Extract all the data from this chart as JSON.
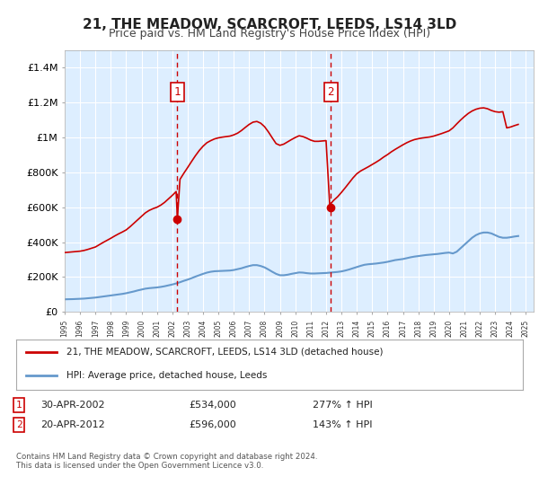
{
  "title": "21, THE MEADOW, SCARCROFT, LEEDS, LS14 3LD",
  "subtitle": "Price paid vs. HM Land Registry's House Price Index (HPI)",
  "background_color": "#ffffff",
  "plot_bg_color": "#ddeeff",
  "grid_color": "#ffffff",
  "ylim": [
    0,
    1500000
  ],
  "yticks": [
    0,
    200000,
    400000,
    600000,
    800000,
    1000000,
    1200000,
    1400000
  ],
  "ytick_labels": [
    "£0",
    "£200K",
    "£400K",
    "£600K",
    "£800K",
    "£1M",
    "£1.2M",
    "£1.4M"
  ],
  "xlim_start": 1995.0,
  "xlim_end": 2025.5,
  "sale1_x": 2002.33,
  "sale1_y": 534000,
  "sale1_label": "1",
  "sale1_date": "30-APR-2002",
  "sale1_price": "£534,000",
  "sale1_hpi": "277% ↑ HPI",
  "sale2_x": 2012.3,
  "sale2_y": 596000,
  "sale2_label": "2",
  "sale2_date": "20-APR-2012",
  "sale2_price": "£596,000",
  "sale2_hpi": "143% ↑ HPI",
  "red_line_color": "#cc0000",
  "blue_line_color": "#6699cc",
  "dashed_line_color": "#cc0000",
  "sale_marker_color": "#cc0000",
  "legend_label_red": "21, THE MEADOW, SCARCROFT, LEEDS, LS14 3LD (detached house)",
  "legend_label_blue": "HPI: Average price, detached house, Leeds",
  "footer": "Contains HM Land Registry data © Crown copyright and database right 2024.\nThis data is licensed under the Open Government Licence v3.0.",
  "hpi_data_x": [
    1995.0,
    1995.25,
    1995.5,
    1995.75,
    1996.0,
    1996.25,
    1996.5,
    1996.75,
    1997.0,
    1997.25,
    1997.5,
    1997.75,
    1998.0,
    1998.25,
    1998.5,
    1998.75,
    1999.0,
    1999.25,
    1999.5,
    1999.75,
    2000.0,
    2000.25,
    2000.5,
    2000.75,
    2001.0,
    2001.25,
    2001.5,
    2001.75,
    2002.0,
    2002.25,
    2002.5,
    2002.75,
    2003.0,
    2003.25,
    2003.5,
    2003.75,
    2004.0,
    2004.25,
    2004.5,
    2004.75,
    2005.0,
    2005.25,
    2005.5,
    2005.75,
    2006.0,
    2006.25,
    2006.5,
    2006.75,
    2007.0,
    2007.25,
    2007.5,
    2007.75,
    2008.0,
    2008.25,
    2008.5,
    2008.75,
    2009.0,
    2009.25,
    2009.5,
    2009.75,
    2010.0,
    2010.25,
    2010.5,
    2010.75,
    2011.0,
    2011.25,
    2011.5,
    2011.75,
    2012.0,
    2012.25,
    2012.5,
    2012.75,
    2013.0,
    2013.25,
    2013.5,
    2013.75,
    2014.0,
    2014.25,
    2014.5,
    2014.75,
    2015.0,
    2015.25,
    2015.5,
    2015.75,
    2016.0,
    2016.25,
    2016.5,
    2016.75,
    2017.0,
    2017.25,
    2017.5,
    2017.75,
    2018.0,
    2018.25,
    2018.5,
    2018.75,
    2019.0,
    2019.25,
    2019.5,
    2019.75,
    2020.0,
    2020.25,
    2020.5,
    2020.75,
    2021.0,
    2021.25,
    2021.5,
    2021.75,
    2022.0,
    2022.25,
    2022.5,
    2022.75,
    2023.0,
    2023.25,
    2023.5,
    2023.75,
    2024.0,
    2024.25,
    2024.5
  ],
  "hpi_data_y": [
    72000,
    72500,
    73000,
    74000,
    75000,
    76000,
    78000,
    80000,
    82000,
    85000,
    88000,
    91000,
    94000,
    97000,
    100000,
    103000,
    107000,
    112000,
    117000,
    123000,
    128000,
    133000,
    136000,
    138000,
    140000,
    143000,
    147000,
    152000,
    157000,
    163000,
    170000,
    178000,
    185000,
    193000,
    202000,
    210000,
    218000,
    225000,
    230000,
    233000,
    234000,
    235000,
    236000,
    237000,
    240000,
    245000,
    250000,
    257000,
    263000,
    268000,
    268000,
    263000,
    255000,
    243000,
    230000,
    218000,
    210000,
    210000,
    213000,
    218000,
    222000,
    226000,
    225000,
    222000,
    220000,
    220000,
    221000,
    222000,
    223000,
    225000,
    227000,
    229000,
    232000,
    237000,
    243000,
    250000,
    257000,
    264000,
    270000,
    273000,
    275000,
    277000,
    280000,
    283000,
    287000,
    292000,
    297000,
    300000,
    303000,
    308000,
    313000,
    317000,
    320000,
    323000,
    326000,
    328000,
    330000,
    332000,
    335000,
    338000,
    340000,
    335000,
    345000,
    365000,
    385000,
    405000,
    425000,
    440000,
    450000,
    455000,
    455000,
    450000,
    440000,
    430000,
    425000,
    425000,
    428000,
    432000,
    435000
  ],
  "red_line_data_x": [
    1995.0,
    1995.25,
    1995.5,
    1995.75,
    1996.0,
    1996.25,
    1996.5,
    1996.75,
    1997.0,
    1997.25,
    1997.5,
    1997.75,
    1998.0,
    1998.25,
    1998.5,
    1998.75,
    1999.0,
    1999.25,
    1999.5,
    1999.75,
    2000.0,
    2000.25,
    2000.5,
    2000.75,
    2001.0,
    2001.25,
    2001.5,
    2001.75,
    2002.0,
    2002.25,
    2002.33,
    2002.5,
    2002.75,
    2003.0,
    2003.25,
    2003.5,
    2003.75,
    2004.0,
    2004.25,
    2004.5,
    2004.75,
    2005.0,
    2005.25,
    2005.5,
    2005.75,
    2006.0,
    2006.25,
    2006.5,
    2006.75,
    2007.0,
    2007.25,
    2007.5,
    2007.75,
    2008.0,
    2008.25,
    2008.5,
    2008.75,
    2009.0,
    2009.25,
    2009.5,
    2009.75,
    2010.0,
    2010.25,
    2010.5,
    2010.75,
    2011.0,
    2011.25,
    2011.5,
    2011.75,
    2012.0,
    2012.25,
    2012.3,
    2012.5,
    2012.75,
    2013.0,
    2013.25,
    2013.5,
    2013.75,
    2014.0,
    2014.25,
    2014.5,
    2014.75,
    2015.0,
    2015.25,
    2015.5,
    2015.75,
    2016.0,
    2016.25,
    2016.5,
    2016.75,
    2017.0,
    2017.25,
    2017.5,
    2017.75,
    2018.0,
    2018.25,
    2018.5,
    2018.75,
    2019.0,
    2019.25,
    2019.5,
    2019.75,
    2020.0,
    2020.25,
    2020.5,
    2020.75,
    2021.0,
    2021.25,
    2021.5,
    2021.75,
    2022.0,
    2022.25,
    2022.5,
    2022.75,
    2023.0,
    2023.25,
    2023.5,
    2023.75,
    2024.0,
    2024.25,
    2024.5
  ],
  "red_line_data_y": [
    340000,
    342000,
    344000,
    346000,
    348000,
    352000,
    358000,
    365000,
    372000,
    385000,
    398000,
    410000,
    422000,
    435000,
    447000,
    458000,
    470000,
    488000,
    508000,
    528000,
    548000,
    568000,
    582000,
    592000,
    600000,
    612000,
    628000,
    648000,
    668000,
    690000,
    534000,
    760000,
    795000,
    828000,
    862000,
    895000,
    925000,
    950000,
    970000,
    982000,
    992000,
    998000,
    1002000,
    1005000,
    1008000,
    1015000,
    1025000,
    1040000,
    1058000,
    1075000,
    1088000,
    1092000,
    1082000,
    1062000,
    1032000,
    998000,
    965000,
    955000,
    962000,
    975000,
    988000,
    1000000,
    1010000,
    1005000,
    996000,
    985000,
    978000,
    978000,
    980000,
    982000,
    596000,
    620000,
    640000,
    660000,
    685000,
    712000,
    740000,
    768000,
    792000,
    808000,
    820000,
    832000,
    845000,
    858000,
    872000,
    888000,
    902000,
    918000,
    932000,
    945000,
    958000,
    970000,
    980000,
    988000,
    993000,
    997000,
    1000000,
    1003000,
    1008000,
    1015000,
    1022000,
    1030000,
    1038000,
    1055000,
    1078000,
    1100000,
    1120000,
    1138000,
    1152000,
    1162000,
    1168000,
    1170000,
    1165000,
    1155000,
    1148000,
    1145000,
    1148000,
    1055000,
    1060000,
    1068000,
    1075000
  ]
}
